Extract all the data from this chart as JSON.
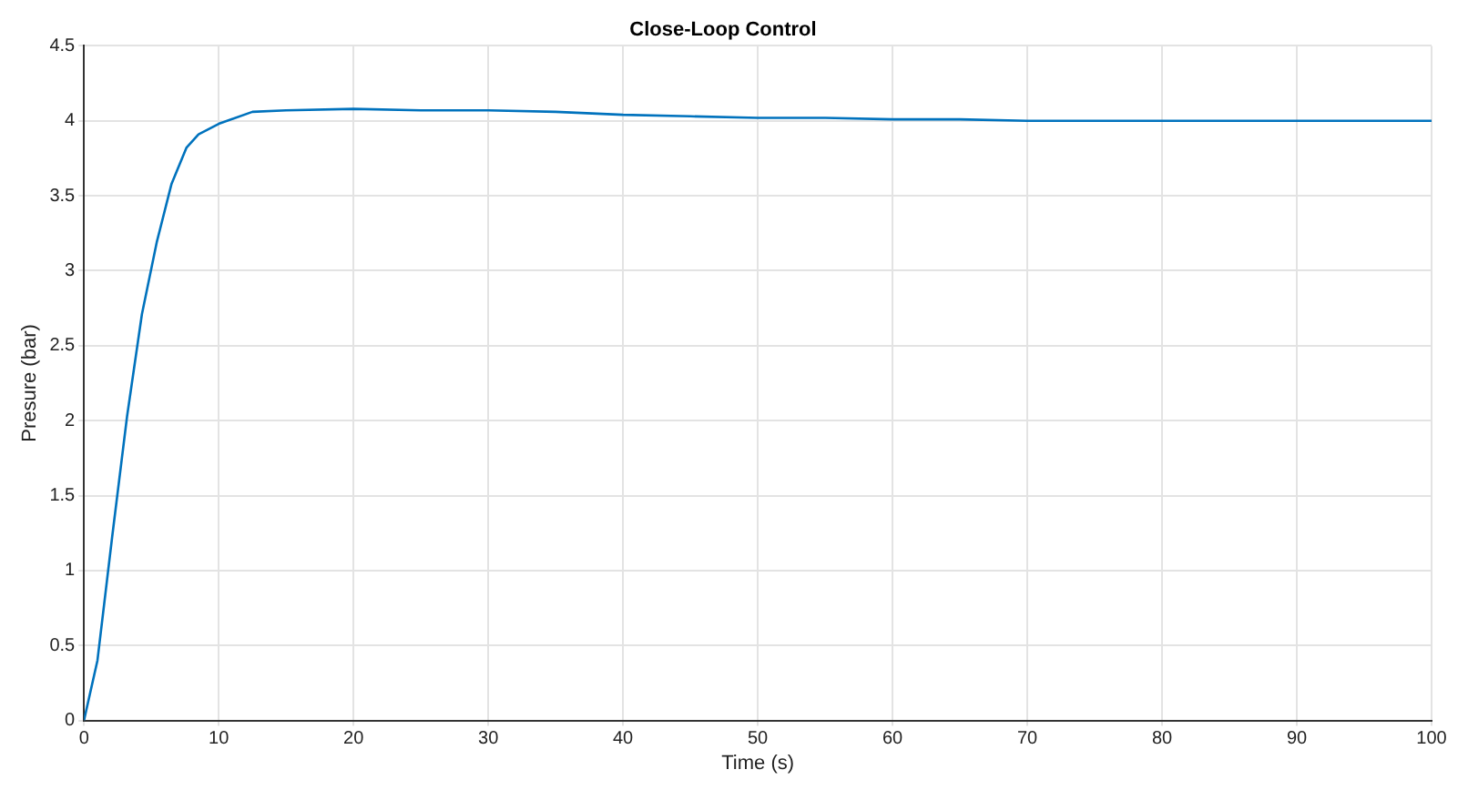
{
  "chart_data": {
    "type": "line",
    "title": "Close-Loop Control",
    "xlabel": "Time (s)",
    "ylabel": "Presure (bar)",
    "x": [
      0,
      1,
      2.1,
      3.2,
      4.3,
      5.4,
      6.5,
      7.6,
      8.5,
      10,
      12.5,
      15,
      20,
      25,
      30,
      35,
      40,
      45,
      50,
      55,
      60,
      65,
      70,
      75,
      80,
      85,
      90,
      95,
      100
    ],
    "series": [
      {
        "color": "#0072bd",
        "values": [
          0,
          0.4,
          1.23,
          2.03,
          2.71,
          3.19,
          3.58,
          3.82,
          3.91,
          3.98,
          4.06,
          4.07,
          4.08,
          4.07,
          4.07,
          4.06,
          4.04,
          4.03,
          4.02,
          4.02,
          4.01,
          4.01,
          4.0,
          4.0,
          4.0,
          4.0,
          4.0,
          4.0,
          4.0
        ]
      }
    ],
    "xlim": [
      0,
      100
    ],
    "xticks": [
      0,
      10,
      20,
      30,
      40,
      50,
      60,
      70,
      80,
      90,
      100
    ],
    "ylim": [
      0,
      4.5
    ],
    "yticks": [
      0,
      0.5,
      1,
      1.5,
      2,
      2.5,
      3,
      3.5,
      4,
      4.5
    ],
    "grid": true,
    "legend": false,
    "marker": "none",
    "line_style": "solid"
  }
}
